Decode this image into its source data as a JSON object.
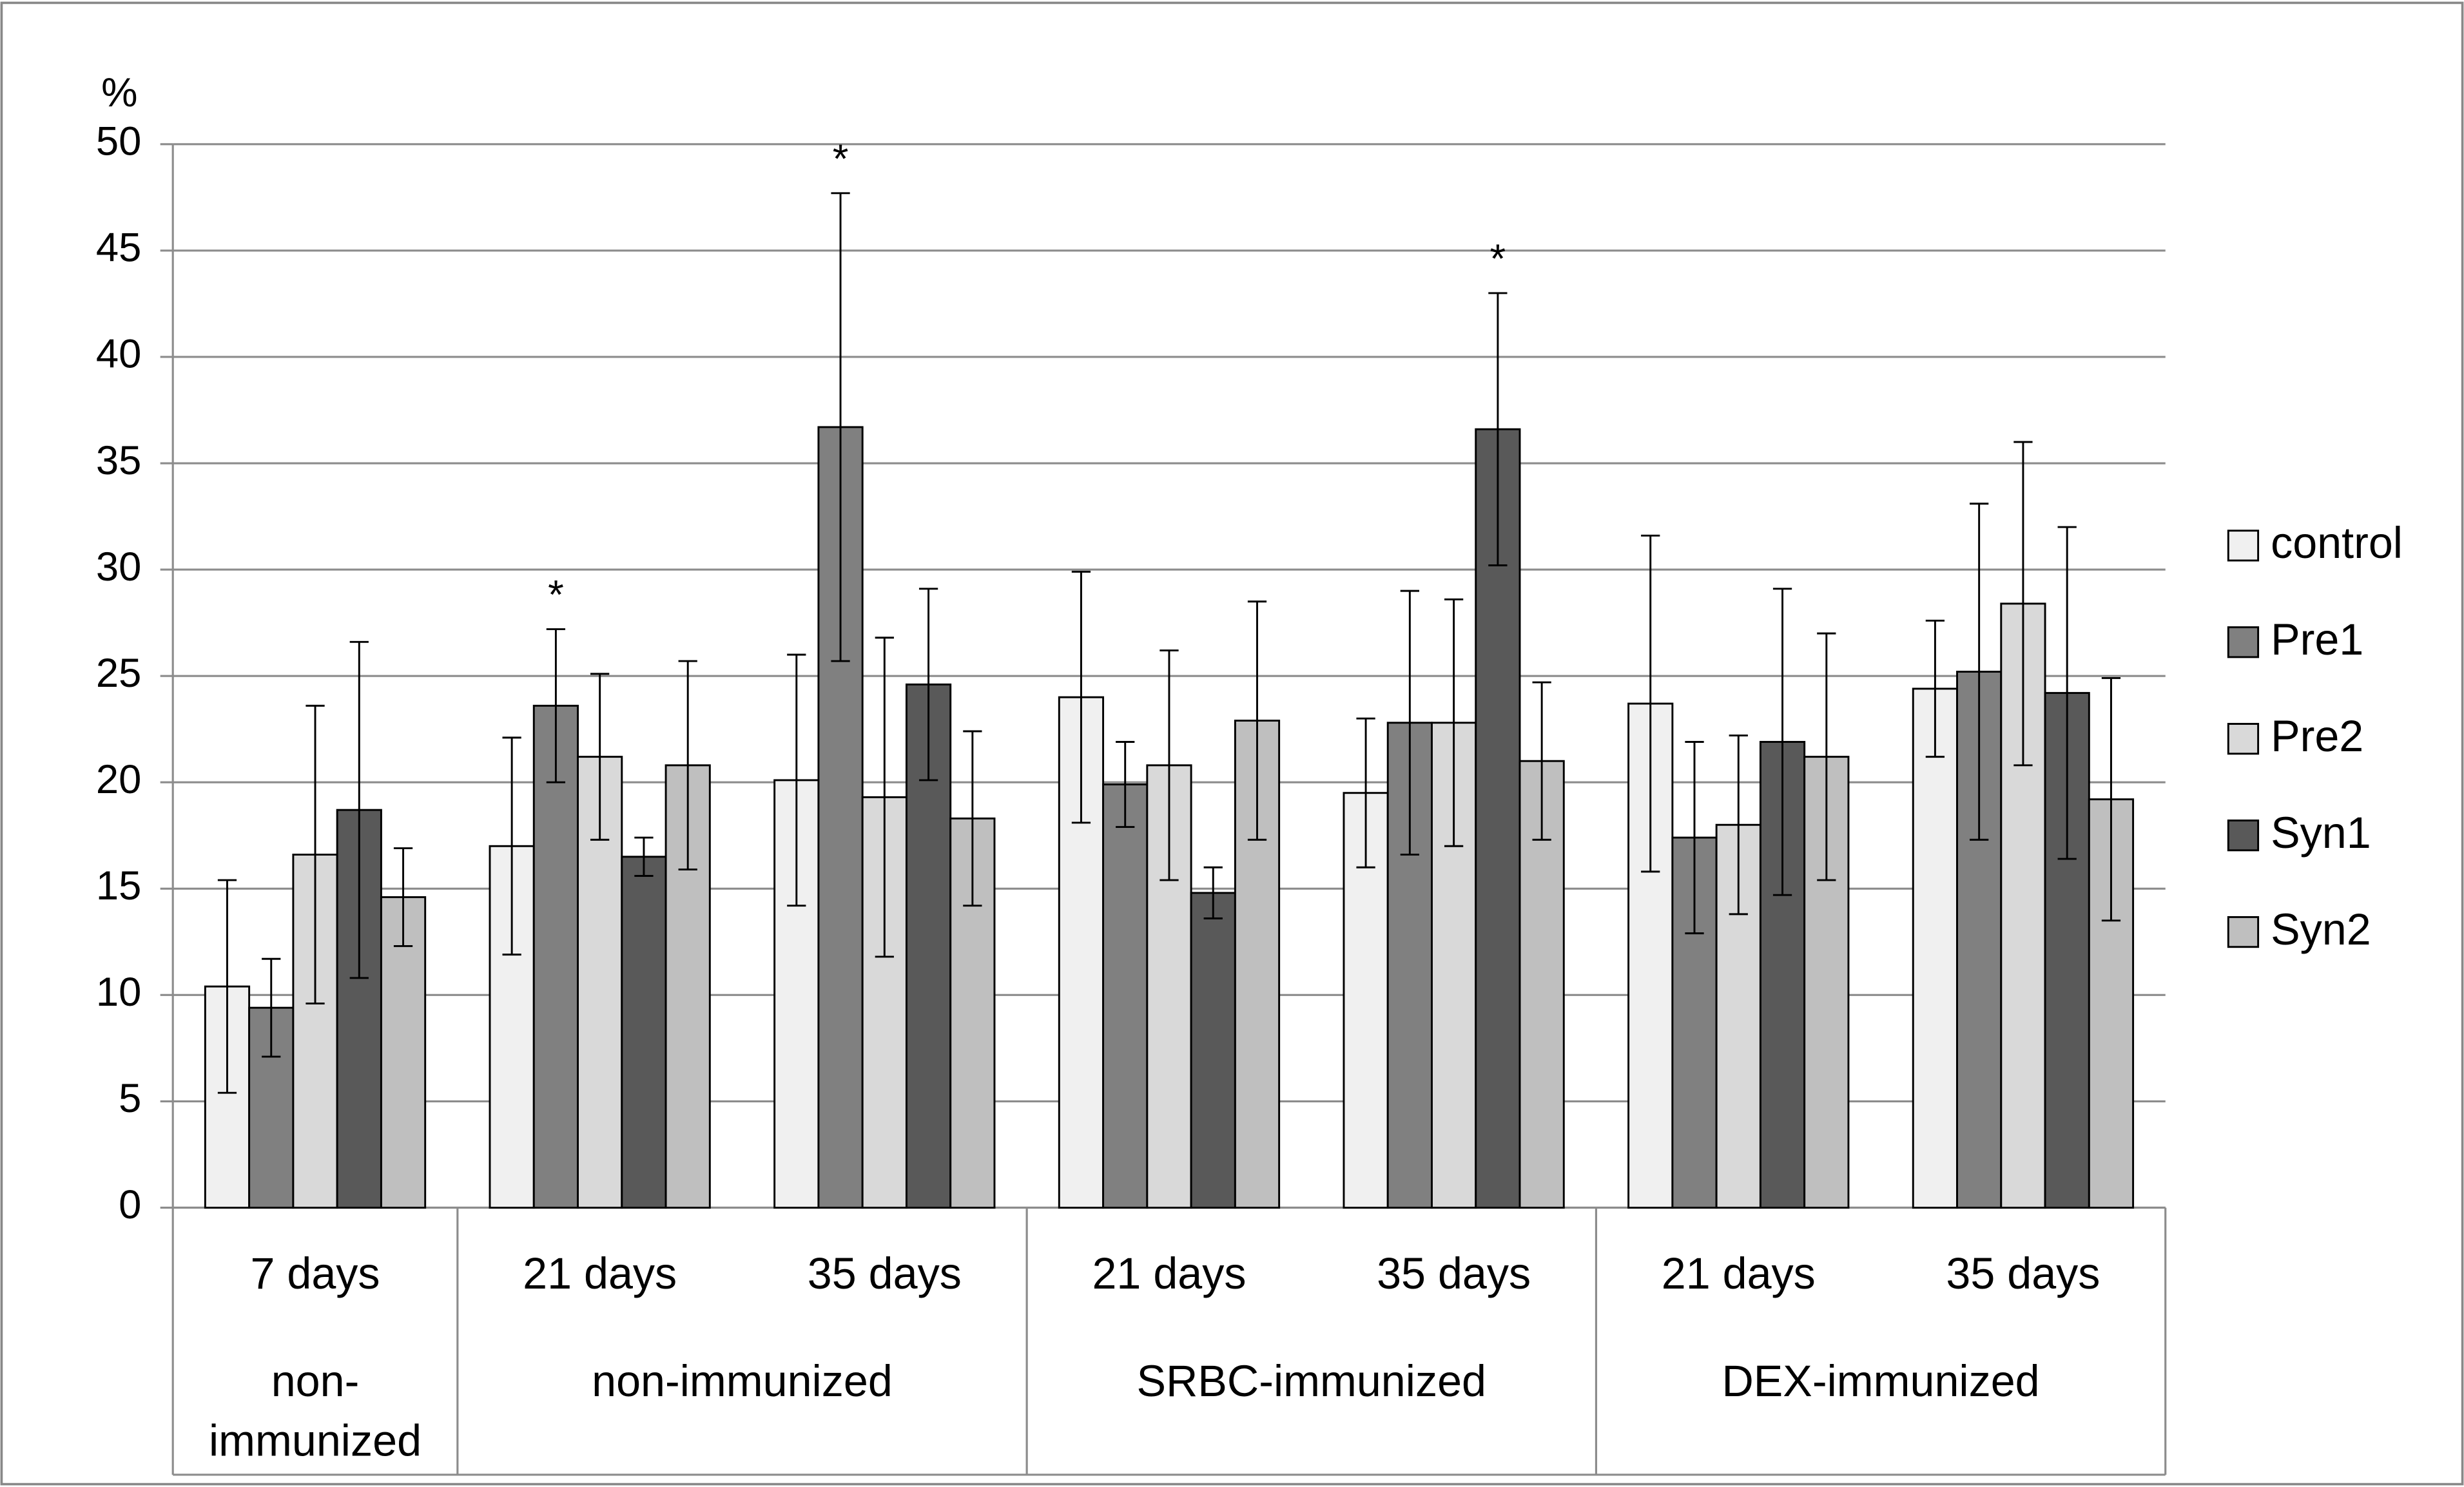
{
  "chart_data": {
    "type": "bar",
    "y_label": "%",
    "categories": [
      "7 days",
      "21 days",
      "35 days",
      "21 days",
      "35 days",
      "21 days",
      "35 days"
    ],
    "groups": [
      {
        "label": "non-immunized",
        "size": 1
      },
      {
        "label": "non-immunized",
        "size": 2
      },
      {
        "label": "SRBC-immunized",
        "size": 2
      },
      {
        "label": "DEX-immunized",
        "size": 2
      }
    ],
    "series": [
      {
        "name": "control",
        "color": "#f0f0f0",
        "values": [
          10.4,
          17.0,
          20.1,
          24.0,
          19.5,
          23.7,
          24.4
        ],
        "errors": [
          5.0,
          5.1,
          5.9,
          5.9,
          3.5,
          7.9,
          3.2
        ],
        "markers": [
          null,
          null,
          null,
          null,
          null,
          null,
          null
        ]
      },
      {
        "name": "Pre1",
        "color": "#808080",
        "values": [
          9.4,
          23.6,
          36.7,
          19.9,
          22.8,
          17.4,
          25.2
        ],
        "errors": [
          2.3,
          3.6,
          11.0,
          2.0,
          6.2,
          4.5,
          7.9
        ],
        "markers": [
          null,
          "*",
          "*",
          null,
          null,
          null,
          null
        ]
      },
      {
        "name": "Pre2",
        "color": "#d9d9d9",
        "values": [
          16.6,
          21.2,
          19.3,
          20.8,
          22.8,
          18.0,
          28.4
        ],
        "errors": [
          7.0,
          3.9,
          7.5,
          5.4,
          5.8,
          4.2,
          7.6
        ],
        "markers": [
          null,
          null,
          null,
          null,
          null,
          null,
          null
        ]
      },
      {
        "name": "Syn1",
        "color": "#595959",
        "values": [
          18.7,
          16.5,
          24.6,
          14.8,
          36.6,
          21.9,
          24.2
        ],
        "errors": [
          7.9,
          0.9,
          4.5,
          1.2,
          6.4,
          7.2,
          7.8
        ],
        "markers": [
          null,
          null,
          null,
          null,
          "*",
          null,
          null
        ]
      },
      {
        "name": "Syn2",
        "color": "#bfbfbf",
        "values": [
          14.6,
          20.8,
          18.3,
          22.9,
          21.0,
          21.2,
          19.2
        ],
        "errors": [
          2.3,
          4.9,
          4.1,
          5.6,
          3.7,
          5.8,
          5.7
        ],
        "markers": [
          null,
          null,
          null,
          null,
          null,
          null,
          null
        ]
      }
    ],
    "ylim": [
      0,
      50
    ],
    "yticks": [
      0,
      5,
      10,
      15,
      20,
      25,
      30,
      35,
      40,
      45,
      50
    ],
    "grid": true,
    "legend": "right"
  }
}
